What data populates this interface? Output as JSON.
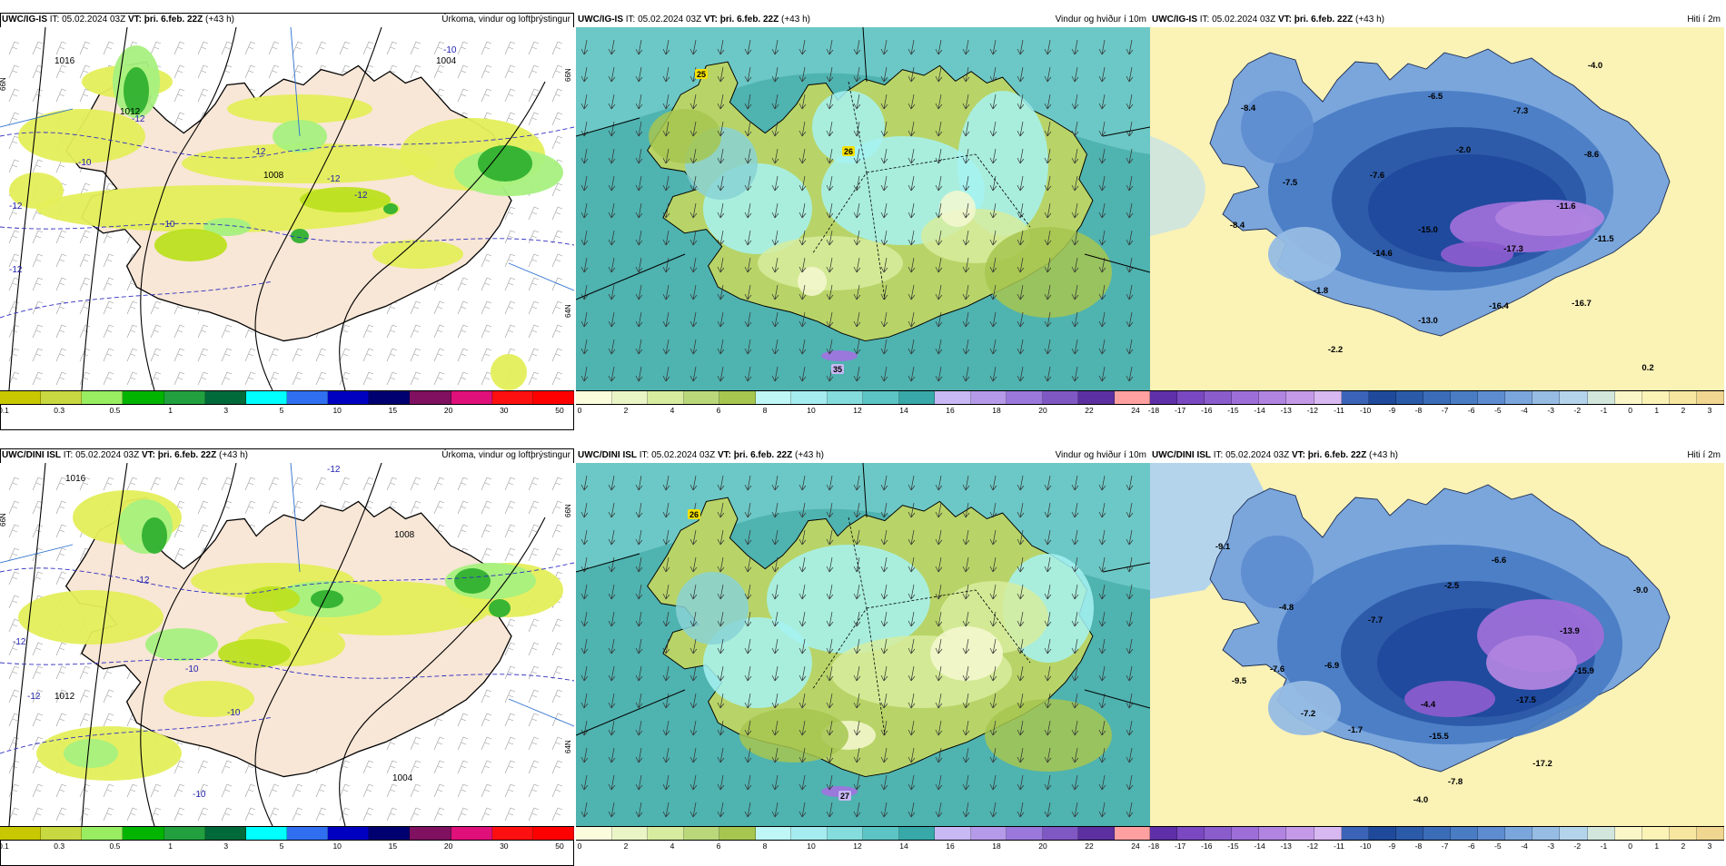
{
  "panels": [
    {
      "id": "p1",
      "model": "UWC/IG-IS",
      "it_label": "IT:",
      "it": "05.02.2024 03Z",
      "vt_label": "VT:",
      "vt": "þri. 6.feb. 22Z",
      "lead": "(+43 h)",
      "field": "Úrkoma, vindur og loftþrýstingur",
      "kind": "precip",
      "map_labels": [
        "1016",
        "1012",
        "1008",
        "1004",
        "-12",
        "-12",
        "-12",
        "-10",
        "-12",
        "-10",
        "-12",
        "-10",
        "-12"
      ],
      "edge_labels": [
        "66N",
        "66N",
        "64N"
      ]
    },
    {
      "id": "p2",
      "model": "UWC/IG-IS",
      "it_label": "IT:",
      "it": "05.02.2024 03Z",
      "vt_label": "VT:",
      "vt": "þri. 6.feb. 22Z",
      "lead": "(+43 h)",
      "field": "Vindur og hviður í 10m",
      "kind": "wind",
      "map_labels": [
        "25",
        "26",
        "35"
      ]
    },
    {
      "id": "p3",
      "model": "UWC/IG-IS",
      "it_label": "IT:",
      "it": "05.02.2024 03Z",
      "vt_label": "VT:",
      "vt": "þri. 6.feb. 22Z",
      "lead": "(+43 h)",
      "field": "Hiti í 2m",
      "kind": "temp",
      "map_labels": [
        "-4.0",
        "-6.5",
        "-7.3",
        "-8.4",
        "-2.0",
        "-8.6",
        "-7.6",
        "-7.5",
        "-11.6",
        "-8.4",
        "-15.0",
        "-11.5",
        "-17.3",
        "-14.6",
        "-1.8",
        "-16.4",
        "-16.7",
        "-13.0",
        "-2.2",
        "0.2"
      ]
    },
    {
      "id": "p4",
      "model": "UWC/DINI ISL",
      "it_label": "IT:",
      "it": "05.02.2024 03Z",
      "vt_label": "VT:",
      "vt": "þri. 6.feb. 22Z",
      "lead": "(+43 h)",
      "field": "Úrkoma, vindur og loftþrýstingur",
      "kind": "precip",
      "map_labels": [
        "1016",
        "1012",
        "1008",
        "1004",
        "-12",
        "-12",
        "-12",
        "-10",
        "-10",
        "-10",
        "-10",
        "-12"
      ],
      "edge_labels": [
        "66N",
        "66N",
        "64N"
      ]
    },
    {
      "id": "p5",
      "model": "UWC/DINI ISL",
      "it_label": "IT:",
      "it": "05.02.2024 03Z",
      "vt_label": "VT:",
      "vt": "þri. 6.feb. 22Z",
      "lead": "(+43 h)",
      "field": "Vindur og hviður í 10m",
      "kind": "wind",
      "map_labels": [
        "26",
        "27"
      ]
    },
    {
      "id": "p6",
      "model": "UWC/DINI ISL",
      "it_label": "IT:",
      "it": "05.02.2024 03Z",
      "vt_label": "VT:",
      "vt": "þri. 6.feb. 22Z",
      "lead": "(+43 h)",
      "field": "Hiti í 2m",
      "kind": "temp",
      "map_labels": [
        "-9.1",
        "-6.6",
        "-2.5",
        "-9.0",
        "-4.8",
        "-7.7",
        "-13.9",
        "-7.6",
        "-6.9",
        "-15.9",
        "-9.5",
        "-4.4",
        "-17.5",
        "-7.2",
        "-1.7",
        "-15.5",
        "-17.2",
        "-7.8",
        "-4.0"
      ]
    }
  ],
  "legends": {
    "precip": {
      "colors": [
        "#c8c800",
        "#c8d840",
        "#98ee60",
        "#00b400",
        "#22a040",
        "#006a3a",
        "#00ffff",
        "#3070f0",
        "#0000c0",
        "#000070",
        "#801060",
        "#e0107a",
        "#ff1010",
        "#ff0000"
      ],
      "ticks": [
        "0.1",
        "0.3",
        "0.5",
        "1",
        "3",
        "5",
        "10",
        "15",
        "20",
        "30",
        "50"
      ]
    },
    "wind": {
      "colors": [
        "#fbfcdc",
        "#eaf5c6",
        "#d7ec9e",
        "#bad87a",
        "#a6c650",
        "#bff6f6",
        "#a5ecf0",
        "#85dcdc",
        "#5cc4c4",
        "#38a8a8",
        "#c8b8f4",
        "#b49ae8",
        "#9a78dc",
        "#8058c4",
        "#5c30a0",
        "#ffa0a0"
      ],
      "ticks": [
        "0",
        "2",
        "4",
        "6",
        "8",
        "10",
        "12",
        "14",
        "16",
        "18",
        "20",
        "22",
        "24"
      ]
    },
    "temp": {
      "colors": [
        "#5e2fa8",
        "#7a48c0",
        "#8a5ccc",
        "#9d6ed8",
        "#b084e0",
        "#c49ae8",
        "#d8b8f0",
        "#3b64b8",
        "#1f4a9c",
        "#2b5aa8",
        "#3a6cb8",
        "#4a7cc4",
        "#5e8cd0",
        "#7aa6dc",
        "#96bce4",
        "#b4d4ec",
        "#d2e6dc",
        "#fbf6c8",
        "#fbf2b6",
        "#f6e6a0",
        "#f0d690"
      ],
      "ticks": [
        "-18",
        "-17",
        "-16",
        "-15",
        "-14",
        "-13",
        "-12",
        "-11",
        "-10",
        "-9",
        "-8",
        "-7",
        "-6",
        "-5",
        "-4",
        "-3",
        "-2",
        "-1",
        "0",
        "1",
        "2",
        "3"
      ]
    }
  }
}
